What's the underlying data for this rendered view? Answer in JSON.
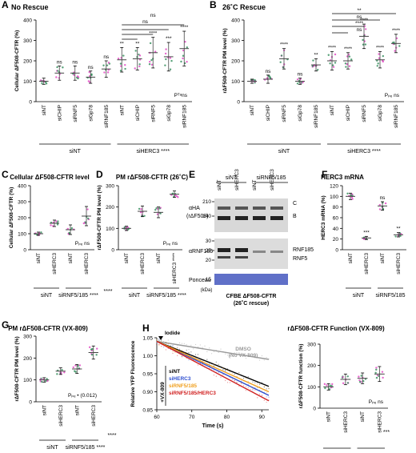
{
  "colors": {
    "green": "#2e8b57",
    "pink": "#e040c0",
    "blue": "#3050d0",
    "orange": "#f0a020",
    "red": "#d02020",
    "gray": "#9a9a9a",
    "purple": "#a040e0",
    "mean": "#444444"
  },
  "panels": {
    "A": {
      "letter": "A",
      "title": "No Rescue",
      "ylabel": "Cellular ΔF508-CFTR (%)",
      "yticks": [
        "0",
        "100",
        "200",
        "300",
        "400"
      ],
      "cats": [
        "siNT",
        "siCHIP",
        "siRNF5",
        "siGp78",
        "siRNF185",
        "siNT",
        "siCHIP",
        "siRNF5",
        "siGp78",
        "siRNF185"
      ],
      "stars": [
        "",
        "ns",
        "ns",
        "ns",
        "ns",
        "**",
        "**",
        "****",
        "***",
        "****"
      ],
      "sig": [
        "ns",
        "ns"
      ],
      "groups": [
        "siNT",
        "siHERC3 ****"
      ],
      "pvalue": "Pᵀᵃns"
    },
    "B": {
      "letter": "B",
      "title": "26˚C Rescue",
      "ylabel": "rΔF508-CFTR PM level (%)",
      "yticks": [
        "0",
        "100",
        "200",
        "300",
        "400"
      ],
      "cats": [
        "siNT",
        "siCHIP",
        "siRNF5",
        "siGp78",
        "siRNF185",
        "siNT",
        "siCHIP",
        "siRNF5",
        "siGp78",
        "siRNF185"
      ],
      "stars": [
        "",
        "ns",
        "****",
        "ns",
        "**",
        "****",
        "****",
        "****",
        "****",
        "****"
      ],
      "sig": [
        "**",
        "ns",
        "****",
        "ns",
        "ns"
      ],
      "groups": [
        "siNT",
        "siHERC3 ****"
      ],
      "pvalue": "Pₚₑ ns"
    },
    "C": {
      "letter": "C",
      "title": "Cellular ΔF508-CFTR level",
      "ylabel": "Cellular ΔF508-CFTR (%)",
      "yticks": [
        "0",
        "100",
        "200",
        "300",
        "400"
      ],
      "cats": [
        "siNT",
        "siHERC3",
        "siNT",
        "siHERC3"
      ],
      "stars": [
        "",
        "",
        "",
        ""
      ],
      "groups": [
        "siNT",
        "siRNF5/185 ****"
      ],
      "side": "****",
      "pvalue": "Pₚₑ ns"
    },
    "D": {
      "letter": "D",
      "title": "PM rΔF508-CFTR (26˚C)",
      "ylabel": "rΔF508-CFTR PM level (%)",
      "yticks": [
        "0",
        "100",
        "200",
        "300"
      ],
      "cats": [
        "siNT",
        "siHERC3",
        "siNT",
        "siHERC3 ****"
      ],
      "groups": [
        "siNT",
        "siRNF5/185 ****"
      ],
      "pvalue": "Pₚₑ ns"
    },
    "E": {
      "letter": "E",
      "headers": [
        "siNT",
        "siRNF5/185"
      ],
      "lanes": [
        "siNT",
        "siHERC3",
        "siNT",
        "siHERC3"
      ],
      "mw_top": [
        "210",
        "140"
      ],
      "mw_mid": [
        "30",
        "25",
        "20"
      ],
      "mw_bot": [
        "15"
      ],
      "kda": "(kDa)",
      "row1": "αHA",
      "row1b": "(rΔF508)",
      "row2": "αRNF185",
      "row3": "Ponceau",
      "bandC": "C",
      "bandB": "B",
      "bandRNF185": "RNF185",
      "bandRNF5": "RNF5",
      "caption1": "CFBE ΔF508-CFTR",
      "caption2": "(26˚C rescue)"
    },
    "F": {
      "letter": "F",
      "title": "HERC3 mRNA",
      "ylabel": "HERC3 mRNA (%)",
      "yticks": [
        "0",
        "20",
        "40",
        "60",
        "80",
        "100",
        "120"
      ],
      "cats": [
        "siNT",
        "siHERC3",
        "siNT",
        "siHERC3"
      ],
      "stars": [
        "",
        "***",
        "ns",
        "**"
      ],
      "groups": [
        "siNT",
        "siRNF5/185"
      ]
    },
    "G": {
      "letter": "G",
      "title": "PM rΔF508-CFTR (VX-809)",
      "ylabel": "rΔF508-CFTR PM level (%)",
      "yticks": [
        "0",
        "100",
        "200",
        "300"
      ],
      "cats": [
        "siNT",
        "siHERC3",
        "siNT",
        "siHERC3"
      ],
      "groups": [
        "siNT",
        "siRNF5/185 ****"
      ],
      "side": "****",
      "pvalue": "Pₚₑ • (0.012)"
    },
    "H": {
      "letter": "H",
      "ylabel": "Relative YFP Fluorescence",
      "xlabel": "Time (s)",
      "xticks": [
        "60",
        "70",
        "80",
        "90"
      ],
      "yticks": [
        "0.85",
        "0.90",
        "0.95",
        "1.00",
        "1.05"
      ],
      "iodide": "Iodide",
      "vx": "+VX-809",
      "dmso1": "DMSO",
      "dmso2": "(No VX-809)",
      "legend": [
        "siNT",
        "siHERC3",
        "siRNF5/185",
        "siRNF5/185/HERC3"
      ]
    },
    "H2": {
      "title": "rΔF508-CFTR Function (VX-809)",
      "ylabel": "rΔF508-CFTR function (%)",
      "yticks": [
        "0",
        "100",
        "200",
        "300"
      ],
      "cats": [
        "siNT",
        "siHERC3",
        "siNT",
        "siHERC3"
      ],
      "groups": [
        "siNT",
        "siRNF5/185 ****"
      ],
      "side": "***",
      "pvalue": "Pₚₑ ns"
    }
  },
  "chart_data": [
    {
      "panel": "A",
      "type": "scatter",
      "title": "No Rescue",
      "ylabel": "Cellular ΔF508-CFTR (%)",
      "ylim": [
        0,
        400
      ],
      "categories": [
        "siNT",
        "siCHIP",
        "siRNF5",
        "siGp78",
        "siRNF185",
        "siNT",
        "siCHIP",
        "siRNF5",
        "siGp78",
        "siRNF185"
      ],
      "means": [
        100,
        140,
        140,
        120,
        160,
        205,
        210,
        240,
        220,
        260
      ],
      "sd": [
        15,
        35,
        35,
        30,
        40,
        60,
        55,
        75,
        70,
        85
      ]
    },
    {
      "panel": "B",
      "type": "scatter",
      "title": "26˚C Rescue",
      "ylabel": "rΔF508-CFTR PM level (%)",
      "ylim": [
        0,
        400
      ],
      "categories": [
        "siNT",
        "siCHIP",
        "siRNF5",
        "siGp78",
        "siRNF185",
        "siNT",
        "siCHIP",
        "siRNF5",
        "siGp78",
        "siRNF185"
      ],
      "means": [
        100,
        110,
        210,
        100,
        180,
        200,
        200,
        320,
        205,
        285
      ],
      "sd": [
        10,
        20,
        50,
        15,
        30,
        45,
        40,
        60,
        40,
        45
      ]
    },
    {
      "panel": "C",
      "type": "scatter",
      "title": "Cellular ΔF508-CFTR level",
      "ylim": [
        0,
        400
      ],
      "categories": [
        "siNT",
        "siHERC3",
        "siNT",
        "siHERC3"
      ],
      "means": [
        100,
        165,
        125,
        210
      ],
      "sd": [
        10,
        20,
        30,
        60
      ]
    },
    {
      "panel": "D",
      "type": "scatter",
      "title": "PM rΔF508-CFTR (26˚C)",
      "ylim": [
        0,
        300
      ],
      "categories": [
        "siNT",
        "siHERC3",
        "siNT",
        "siHERC3"
      ],
      "means": [
        100,
        180,
        175,
        260
      ],
      "sd": [
        10,
        25,
        25,
        15
      ]
    },
    {
      "panel": "F",
      "type": "scatter",
      "title": "HERC3 mRNA",
      "ylim": [
        0,
        120
      ],
      "categories": [
        "siNT",
        "siHERC3",
        "siNT",
        "siHERC3"
      ],
      "means": [
        100,
        22,
        82,
        28
      ],
      "sd": [
        6,
        3,
        8,
        4
      ]
    },
    {
      "panel": "G",
      "type": "scatter",
      "title": "PM rΔF508-CFTR (VX-809)",
      "ylim": [
        0,
        300
      ],
      "categories": [
        "siNT",
        "siHERC3",
        "siNT",
        "siHERC3"
      ],
      "means": [
        100,
        140,
        150,
        225
      ],
      "sd": [
        10,
        15,
        20,
        30
      ]
    },
    {
      "panel": "H",
      "type": "line",
      "xlabel": "Time (s)",
      "ylabel": "Relative YFP Fluorescence",
      "xlim": [
        60,
        92
      ],
      "ylim": [
        0.85,
        1.05
      ],
      "series": [
        {
          "name": "DMSO (No VX-809)",
          "x": [
            60,
            92
          ],
          "y": [
            1.04,
            0.99
          ]
        },
        {
          "name": "siNT",
          "x": [
            60,
            92
          ],
          "y": [
            1.04,
            0.915
          ]
        },
        {
          "name": "siHERC3",
          "x": [
            60,
            92
          ],
          "y": [
            1.04,
            0.89
          ]
        },
        {
          "name": "siRNF5/185",
          "x": [
            60,
            92
          ],
          "y": [
            1.04,
            0.9
          ]
        },
        {
          "name": "siRNF5/185/HERC3",
          "x": [
            60,
            92
          ],
          "y": [
            1.04,
            0.875
          ]
        }
      ]
    },
    {
      "panel": "H2",
      "type": "scatter",
      "title": "rΔF508-CFTR Function (VX-809)",
      "ylim": [
        0,
        300
      ],
      "categories": [
        "siNT",
        "siHERC3",
        "siNT",
        "siHERC3"
      ],
      "means": [
        100,
        135,
        140,
        160
      ],
      "sd": [
        15,
        25,
        25,
        35
      ]
    }
  ]
}
